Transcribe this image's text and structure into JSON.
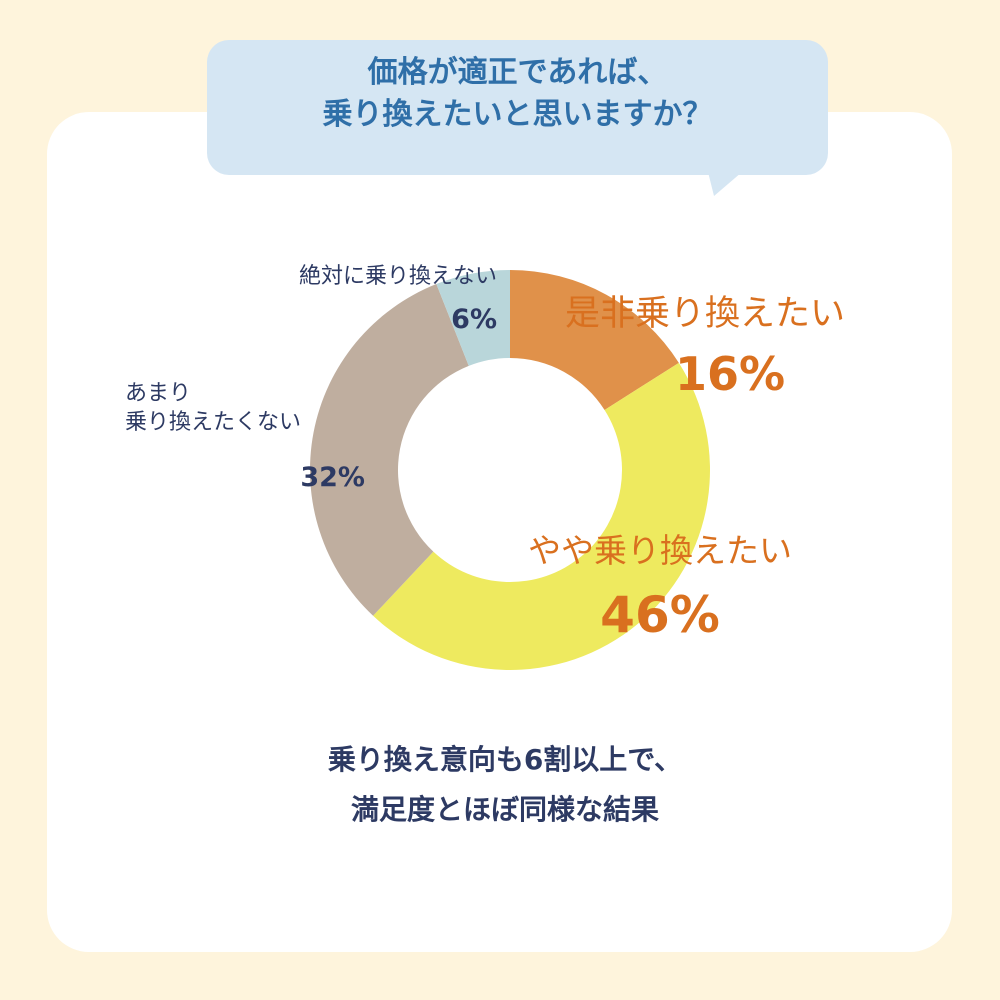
{
  "chart_data": {
    "type": "donut",
    "title": "価格が適正であれば、\n乗り換えたいと思いますか？",
    "categories": [
      "是非乗り換えたい",
      "やや乗り換えたい",
      "あまり\n乗り換えたくない",
      "絶対に乗り換えない"
    ],
    "values": [
      16,
      46,
      32,
      6
    ],
    "value_labels": [
      "16%",
      "46%",
      "32%",
      "6%"
    ],
    "colors": [
      "#e0914a",
      "#eeea5f",
      "#bfae9f",
      "#b9d6da"
    ],
    "caption": "乗り換え意向も6割以上で、\n満足度とほぼ同様な結果"
  }
}
